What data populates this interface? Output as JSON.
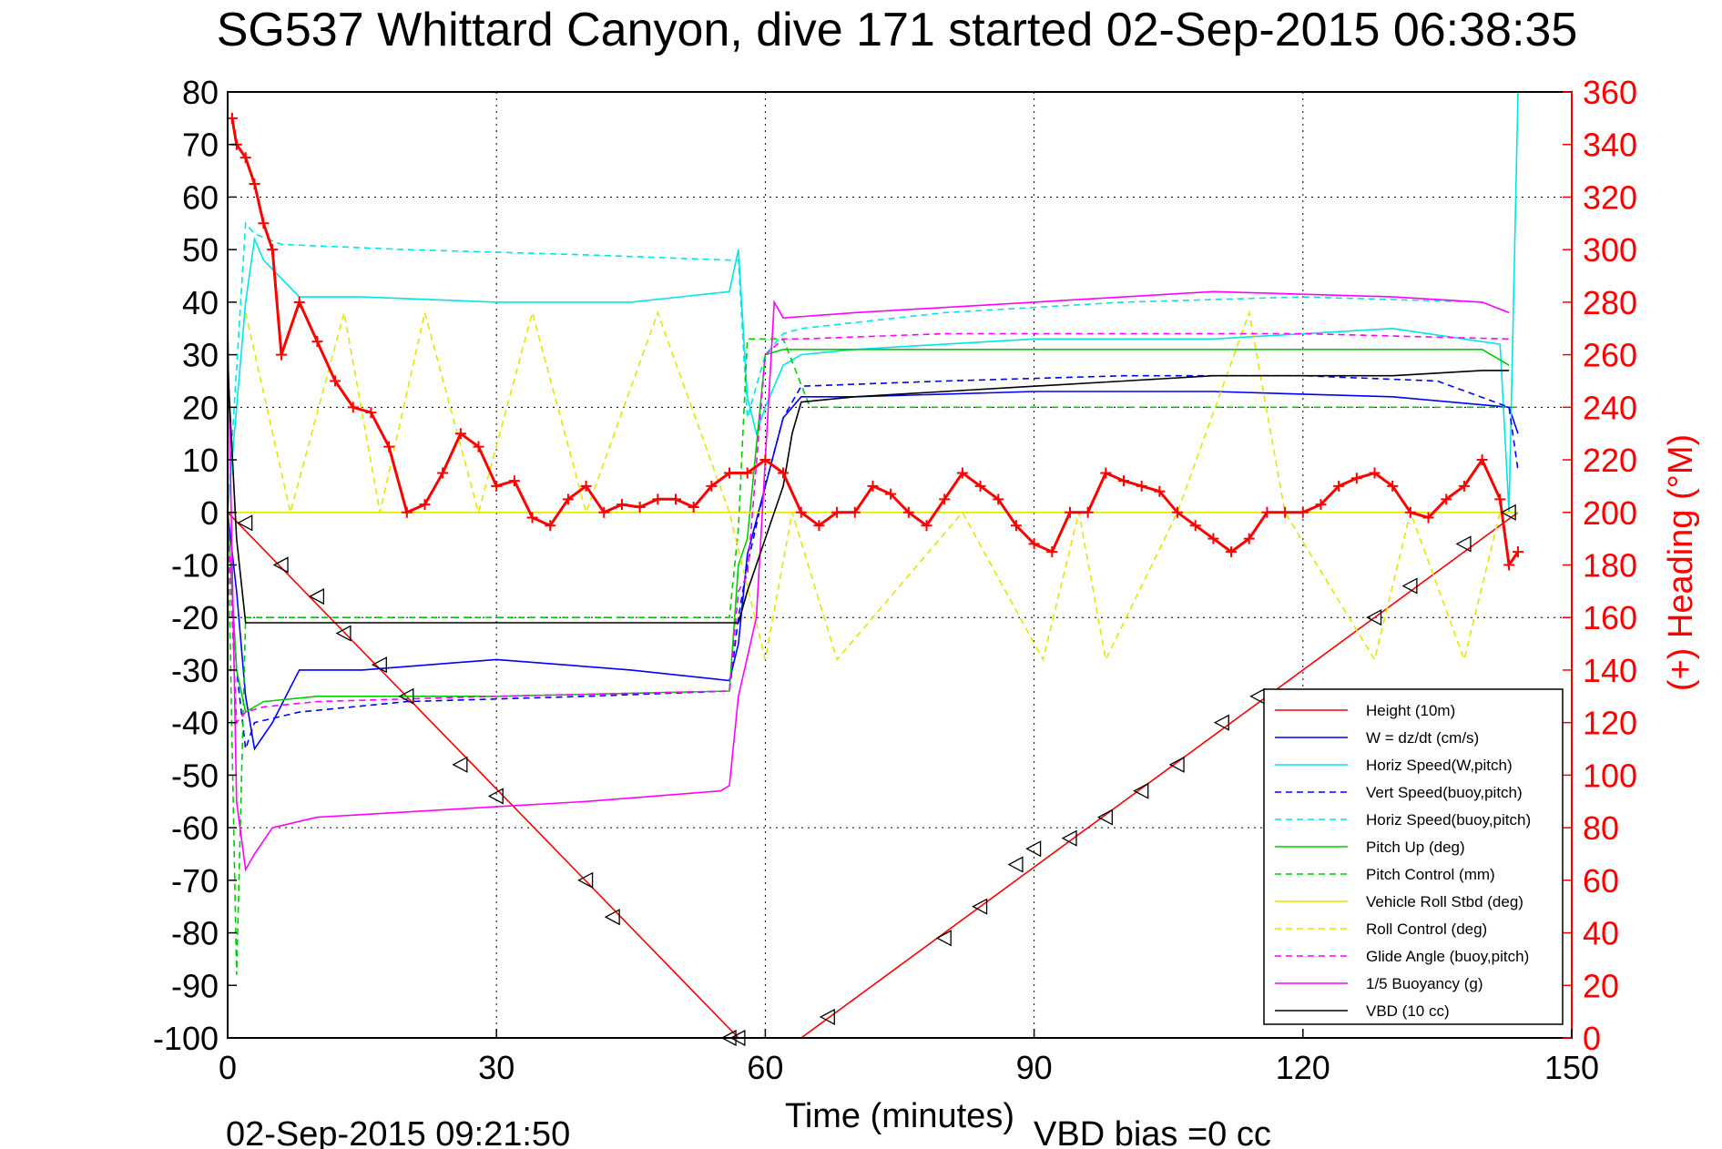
{
  "chart_data": {
    "type": "line",
    "title": "SG537 Whittard Canyon, dive 171 started 02-Sep-2015 06:38:35",
    "xlabel": "Time (minutes)",
    "ylabel_right": "(+) Heading (°M)",
    "footer_left": "02-Sep-2015 09:21:50",
    "footer_right": "VBD bias =0 cc",
    "xlim": [
      0,
      150
    ],
    "ylim": [
      -100,
      80
    ],
    "ylim_right": [
      0,
      360
    ],
    "xticks": [
      "0",
      "30",
      "60",
      "90",
      "120",
      "150"
    ],
    "yticks": [
      "80",
      "70",
      "60",
      "50",
      "40",
      "30",
      "20",
      "10",
      "0",
      "-10",
      "-20",
      "-30",
      "-40",
      "-50",
      "-60",
      "-70",
      "-80",
      "-90",
      "-100"
    ],
    "yticks_right": [
      "360",
      "340",
      "320",
      "300",
      "280",
      "260",
      "240",
      "220",
      "200",
      "180",
      "160",
      "140",
      "120",
      "100",
      "80",
      "60",
      "40",
      "20",
      "0"
    ],
    "grid": true,
    "legend_position": "lower-right",
    "right_axis_color": "#ff0000",
    "series": [
      {
        "name": "Height (10m)",
        "color": "#ff0000",
        "style": "solid",
        "x": [
          0,
          57,
          58,
          64,
          144
        ],
        "y": [
          0,
          -100,
          null,
          -100,
          0
        ]
      },
      {
        "name": "W = dz/dt (cm/s)",
        "color": "#0000ff",
        "style": "solid",
        "x": [
          0,
          1,
          2,
          3,
          5,
          8,
          15,
          30,
          45,
          56,
          57,
          58,
          60,
          62,
          64,
          70,
          90,
          110,
          130,
          143,
          144
        ],
        "y": [
          0,
          -15,
          -35,
          -45,
          -40,
          -30,
          -30,
          -28,
          -30,
          -32,
          -25,
          -8,
          5,
          18,
          22,
          22,
          23,
          23,
          22,
          20,
          15
        ]
      },
      {
        "name": "Horiz Speed(W,pitch)",
        "color": "#00e5e5",
        "style": "solid",
        "x": [
          0,
          2,
          3,
          4,
          8,
          15,
          30,
          45,
          56,
          57,
          58,
          59,
          60,
          62,
          64,
          70,
          90,
          110,
          130,
          142,
          143,
          144
        ],
        "y": [
          0,
          40,
          52,
          48,
          41,
          41,
          40,
          40,
          42,
          50,
          22,
          15,
          20,
          28,
          30,
          31,
          33,
          33,
          35,
          32,
          0,
          80
        ]
      },
      {
        "name": "Vert Speed(buoy,pitch)",
        "color": "#0000ff",
        "style": "dashed",
        "x": [
          0,
          1,
          2,
          3,
          8,
          20,
          40,
          56,
          57,
          58,
          60,
          62,
          64,
          80,
          100,
          120,
          135,
          143,
          144
        ],
        "y": [
          0,
          -30,
          -45,
          -40,
          -38,
          -36,
          -35,
          -34,
          -20,
          -10,
          5,
          18,
          24,
          25,
          26,
          26,
          25,
          20,
          8
        ]
      },
      {
        "name": "Horiz Speed(buoy,pitch)",
        "color": "#00e5e5",
        "style": "dashed",
        "x": [
          0,
          2,
          3,
          6,
          20,
          40,
          56,
          57,
          58,
          60,
          62,
          64,
          80,
          100,
          120,
          140,
          143
        ],
        "y": [
          0,
          55,
          53,
          51,
          50,
          49,
          48,
          48,
          18,
          30,
          34,
          35,
          38,
          40,
          41,
          40,
          38
        ]
      },
      {
        "name": "Pitch Up (deg)",
        "color": "#00cc00",
        "style": "solid",
        "x": [
          0,
          1,
          2,
          4,
          10,
          30,
          56,
          57,
          58,
          60,
          62,
          64,
          80,
          100,
          120,
          140,
          143
        ],
        "y": [
          0,
          -30,
          -38,
          -36,
          -35,
          -35,
          -34,
          -10,
          -5,
          30,
          31,
          31,
          31,
          31,
          31,
          31,
          28
        ]
      },
      {
        "name": "Pitch Control (mm)",
        "color": "#00cc00",
        "style": "dashed",
        "x": [
          0,
          1,
          2,
          5,
          56,
          57,
          58,
          62,
          65,
          143,
          144
        ],
        "y": [
          0,
          -88,
          -20,
          -20,
          -20,
          -3,
          33,
          33,
          20,
          20,
          20
        ]
      },
      {
        "name": "Vehicle Roll Stbd (deg)",
        "color": "#e5e500",
        "style": "solid",
        "x": [
          0,
          144
        ],
        "y": [
          0,
          0
        ]
      },
      {
        "name": "Roll Control (deg)",
        "color": "#e5e500",
        "style": "dashed",
        "x": [
          2,
          7,
          13,
          17,
          22,
          28,
          34,
          40,
          48,
          56,
          60,
          63,
          68,
          82,
          91,
          95,
          98,
          106,
          114,
          118,
          128,
          132,
          138,
          142
        ],
        "y": [
          38,
          0,
          38,
          0,
          38,
          0,
          38,
          0,
          38,
          0,
          -28,
          0,
          -28,
          0,
          -28,
          0,
          -28,
          0,
          38,
          0,
          -28,
          0,
          -28,
          0
        ]
      },
      {
        "name": "Glide Angle (buoy,pitch)",
        "color": "#ff00ff",
        "style": "dashed",
        "x": [
          0,
          1,
          2,
          4,
          10,
          30,
          56,
          57,
          58,
          60,
          62,
          64,
          80,
          100,
          120,
          143
        ],
        "y": [
          0,
          -40,
          -38,
          -37,
          -36,
          -35,
          -34,
          -15,
          -12,
          30,
          33,
          33,
          34,
          34,
          34,
          33
        ]
      },
      {
        "name": "1/5 Buoyancy (g)",
        "color": "#ff00ff",
        "style": "solid",
        "x": [
          0,
          1,
          2,
          3,
          5,
          10,
          20,
          40,
          55,
          56,
          57,
          59,
          60,
          61,
          62,
          70,
          90,
          110,
          130,
          140,
          143
        ],
        "y": [
          37,
          -55,
          -68,
          -65,
          -60,
          -58,
          -57,
          -55,
          -53,
          -52,
          -35,
          -20,
          10,
          40,
          37,
          38,
          40,
          42,
          41,
          40,
          38
        ]
      },
      {
        "name": "VBD (10 cc)",
        "color": "#000000",
        "style": "solid",
        "x": [
          0,
          1,
          2,
          56,
          57,
          58,
          60,
          62,
          63,
          64,
          70,
          90,
          100,
          110,
          120,
          130,
          140,
          143
        ],
        "y": [
          28,
          -5,
          -21,
          -21,
          -21,
          -15,
          -5,
          5,
          15,
          21,
          22,
          24,
          25,
          26,
          26,
          26,
          27,
          27
        ]
      }
    ],
    "heading_series": {
      "name": "(+) Heading",
      "color": "#ff0000",
      "marker": "+",
      "x": [
        0.5,
        1,
        2,
        3,
        4,
        5,
        6,
        8,
        10,
        12,
        14,
        16,
        18,
        20,
        22,
        24,
        26,
        28,
        30,
        32,
        34,
        36,
        38,
        40,
        42,
        44,
        46,
        48,
        50,
        52,
        54,
        56,
        58,
        60,
        62,
        64,
        66,
        68,
        70,
        72,
        74,
        76,
        78,
        80,
        82,
        84,
        86,
        88,
        90,
        92,
        94,
        96,
        98,
        100,
        102,
        104,
        106,
        108,
        110,
        112,
        114,
        116,
        118,
        120,
        122,
        124,
        126,
        128,
        130,
        132,
        134,
        136,
        138,
        140,
        142,
        143,
        144
      ],
      "y": [
        350,
        340,
        335,
        325,
        310,
        300,
        260,
        280,
        265,
        250,
        240,
        238,
        225,
        200,
        203,
        215,
        230,
        225,
        210,
        212,
        198,
        195,
        205,
        210,
        200,
        203,
        202,
        205,
        205,
        202,
        210,
        215,
        215,
        220,
        215,
        200,
        195,
        200,
        200,
        210,
        207,
        200,
        195,
        205,
        215,
        210,
        205,
        195,
        188,
        185,
        200,
        200,
        215,
        212,
        210,
        208,
        200,
        195,
        190,
        185,
        190,
        200,
        200,
        200,
        203,
        210,
        213,
        215,
        210,
        200,
        198,
        205,
        210,
        220,
        205,
        180,
        185
      ]
    },
    "height_markers": {
      "x": [
        2,
        6,
        10,
        13,
        17,
        20,
        26,
        30,
        40,
        43,
        56,
        57,
        67,
        80,
        84,
        88,
        90,
        94,
        98,
        102,
        106,
        111,
        115,
        128,
        132,
        138,
        143
      ],
      "y": [
        -2,
        -10,
        -16,
        -23,
        -29,
        -35,
        -48,
        -54,
        -70,
        -77,
        -100,
        -100,
        -96,
        -81,
        -75,
        -67,
        -64,
        -62,
        -58,
        -53,
        -48,
        -40,
        -35,
        -20,
        -14,
        -6,
        0
      ]
    }
  }
}
